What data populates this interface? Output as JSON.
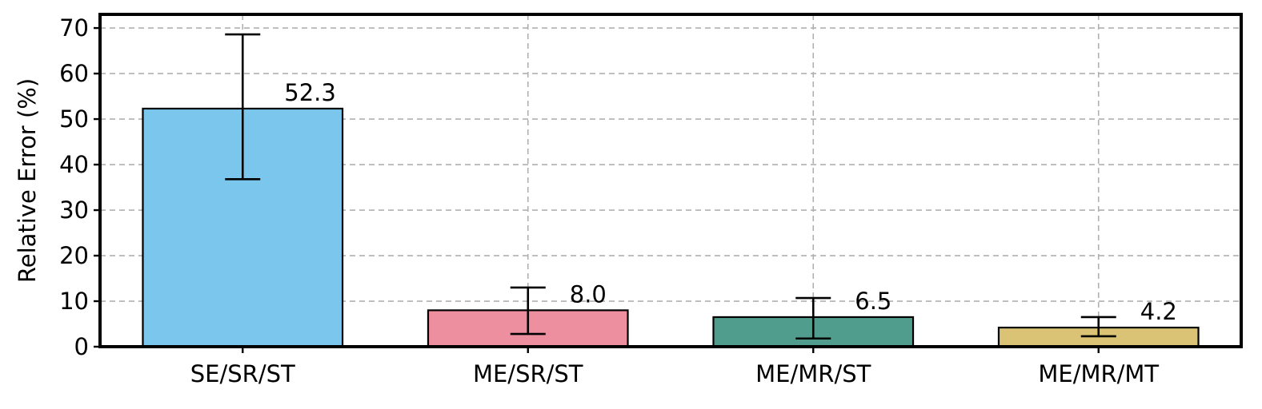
{
  "chart_data": {
    "type": "bar",
    "title": "",
    "xlabel": "",
    "ylabel": "Relative Error (%)",
    "categories": [
      "SE/SR/ST",
      "ME/SR/ST",
      "ME/MR/ST",
      "ME/MR/MT"
    ],
    "values": [
      52.3,
      8.0,
      6.5,
      4.2
    ],
    "value_labels": [
      "52.3",
      "8.0",
      "6.5",
      "4.2"
    ],
    "error_low": [
      36.8,
      2.8,
      1.8,
      2.3
    ],
    "error_high": [
      68.6,
      13.0,
      10.7,
      6.5
    ],
    "colors": [
      "#7bc6ec",
      "#ee8f9f",
      "#519d8d",
      "#dbc376"
    ],
    "ylim": [
      0,
      73
    ],
    "yticks": [
      0,
      10,
      20,
      30,
      40,
      50,
      60,
      70
    ],
    "ytick_labels": [
      "0",
      "10",
      "20",
      "30",
      "40",
      "50",
      "60",
      "70"
    ],
    "grid": true
  }
}
